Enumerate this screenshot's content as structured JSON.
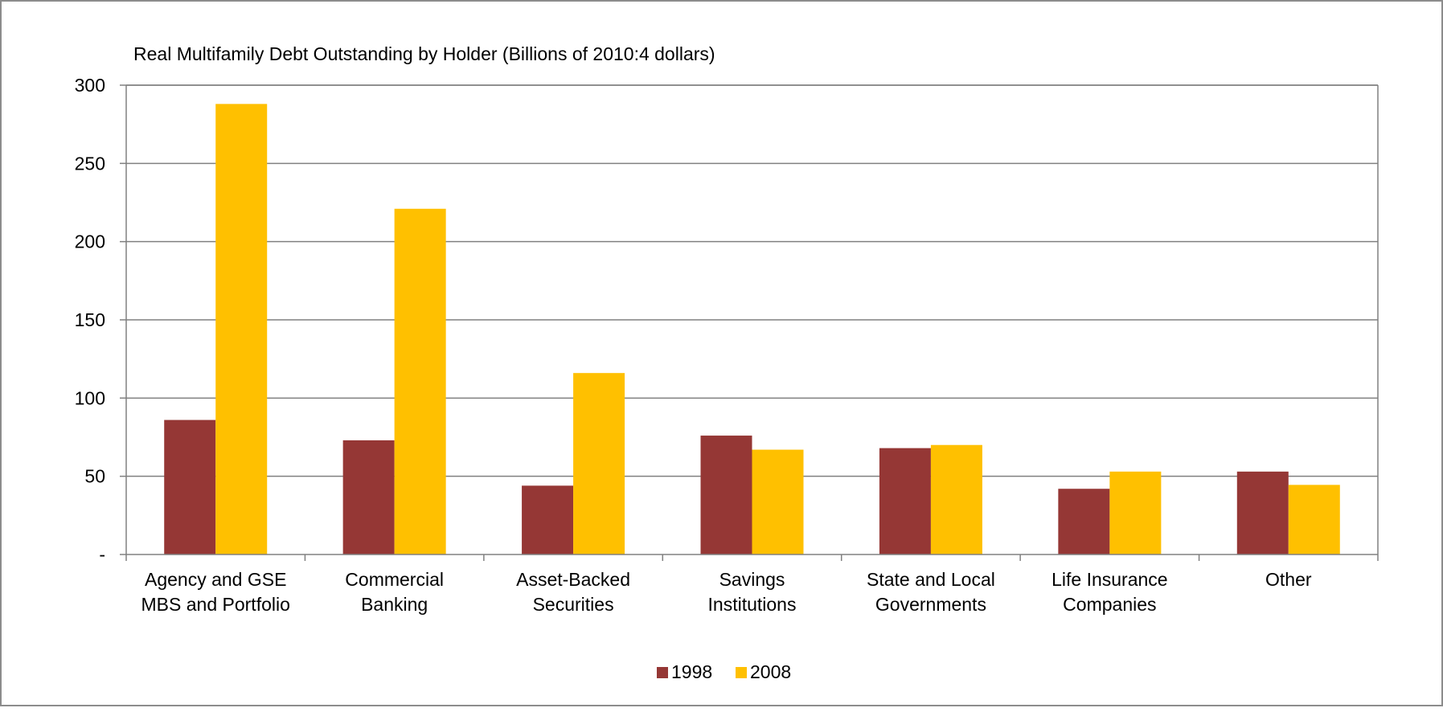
{
  "chart_data": {
    "type": "bar",
    "title": "Real Multifamily Debt Outstanding by Holder (Billions of 2010:4 dollars)",
    "xlabel": "",
    "ylabel": "",
    "ylim": [
      0,
      300
    ],
    "yticks": [
      0,
      50,
      100,
      150,
      200,
      250,
      300
    ],
    "ytick_labels": [
      "-",
      "50",
      "100",
      "150",
      "200",
      "250",
      "300"
    ],
    "grid": true,
    "legend_position": "bottom",
    "categories": [
      [
        "Agency and GSE",
        "MBS and Portfolio"
      ],
      [
        "Commercial",
        "Banking"
      ],
      [
        "Asset-Backed",
        "Securities"
      ],
      [
        "Savings",
        "Institutions"
      ],
      [
        "State and Local",
        "Governments"
      ],
      [
        "Life Insurance",
        "Companies"
      ],
      [
        "Other"
      ]
    ],
    "series": [
      {
        "name": "1998",
        "color": "#953735",
        "values": [
          86,
          73,
          44,
          76,
          68,
          42,
          53
        ]
      },
      {
        "name": "2008",
        "color": "#FFC000",
        "values": [
          288,
          221,
          116,
          67,
          70,
          53,
          44.5
        ]
      }
    ],
    "colors": {
      "grid": "#808080",
      "axis": "#808080",
      "frame": "#8c8c8c"
    }
  }
}
